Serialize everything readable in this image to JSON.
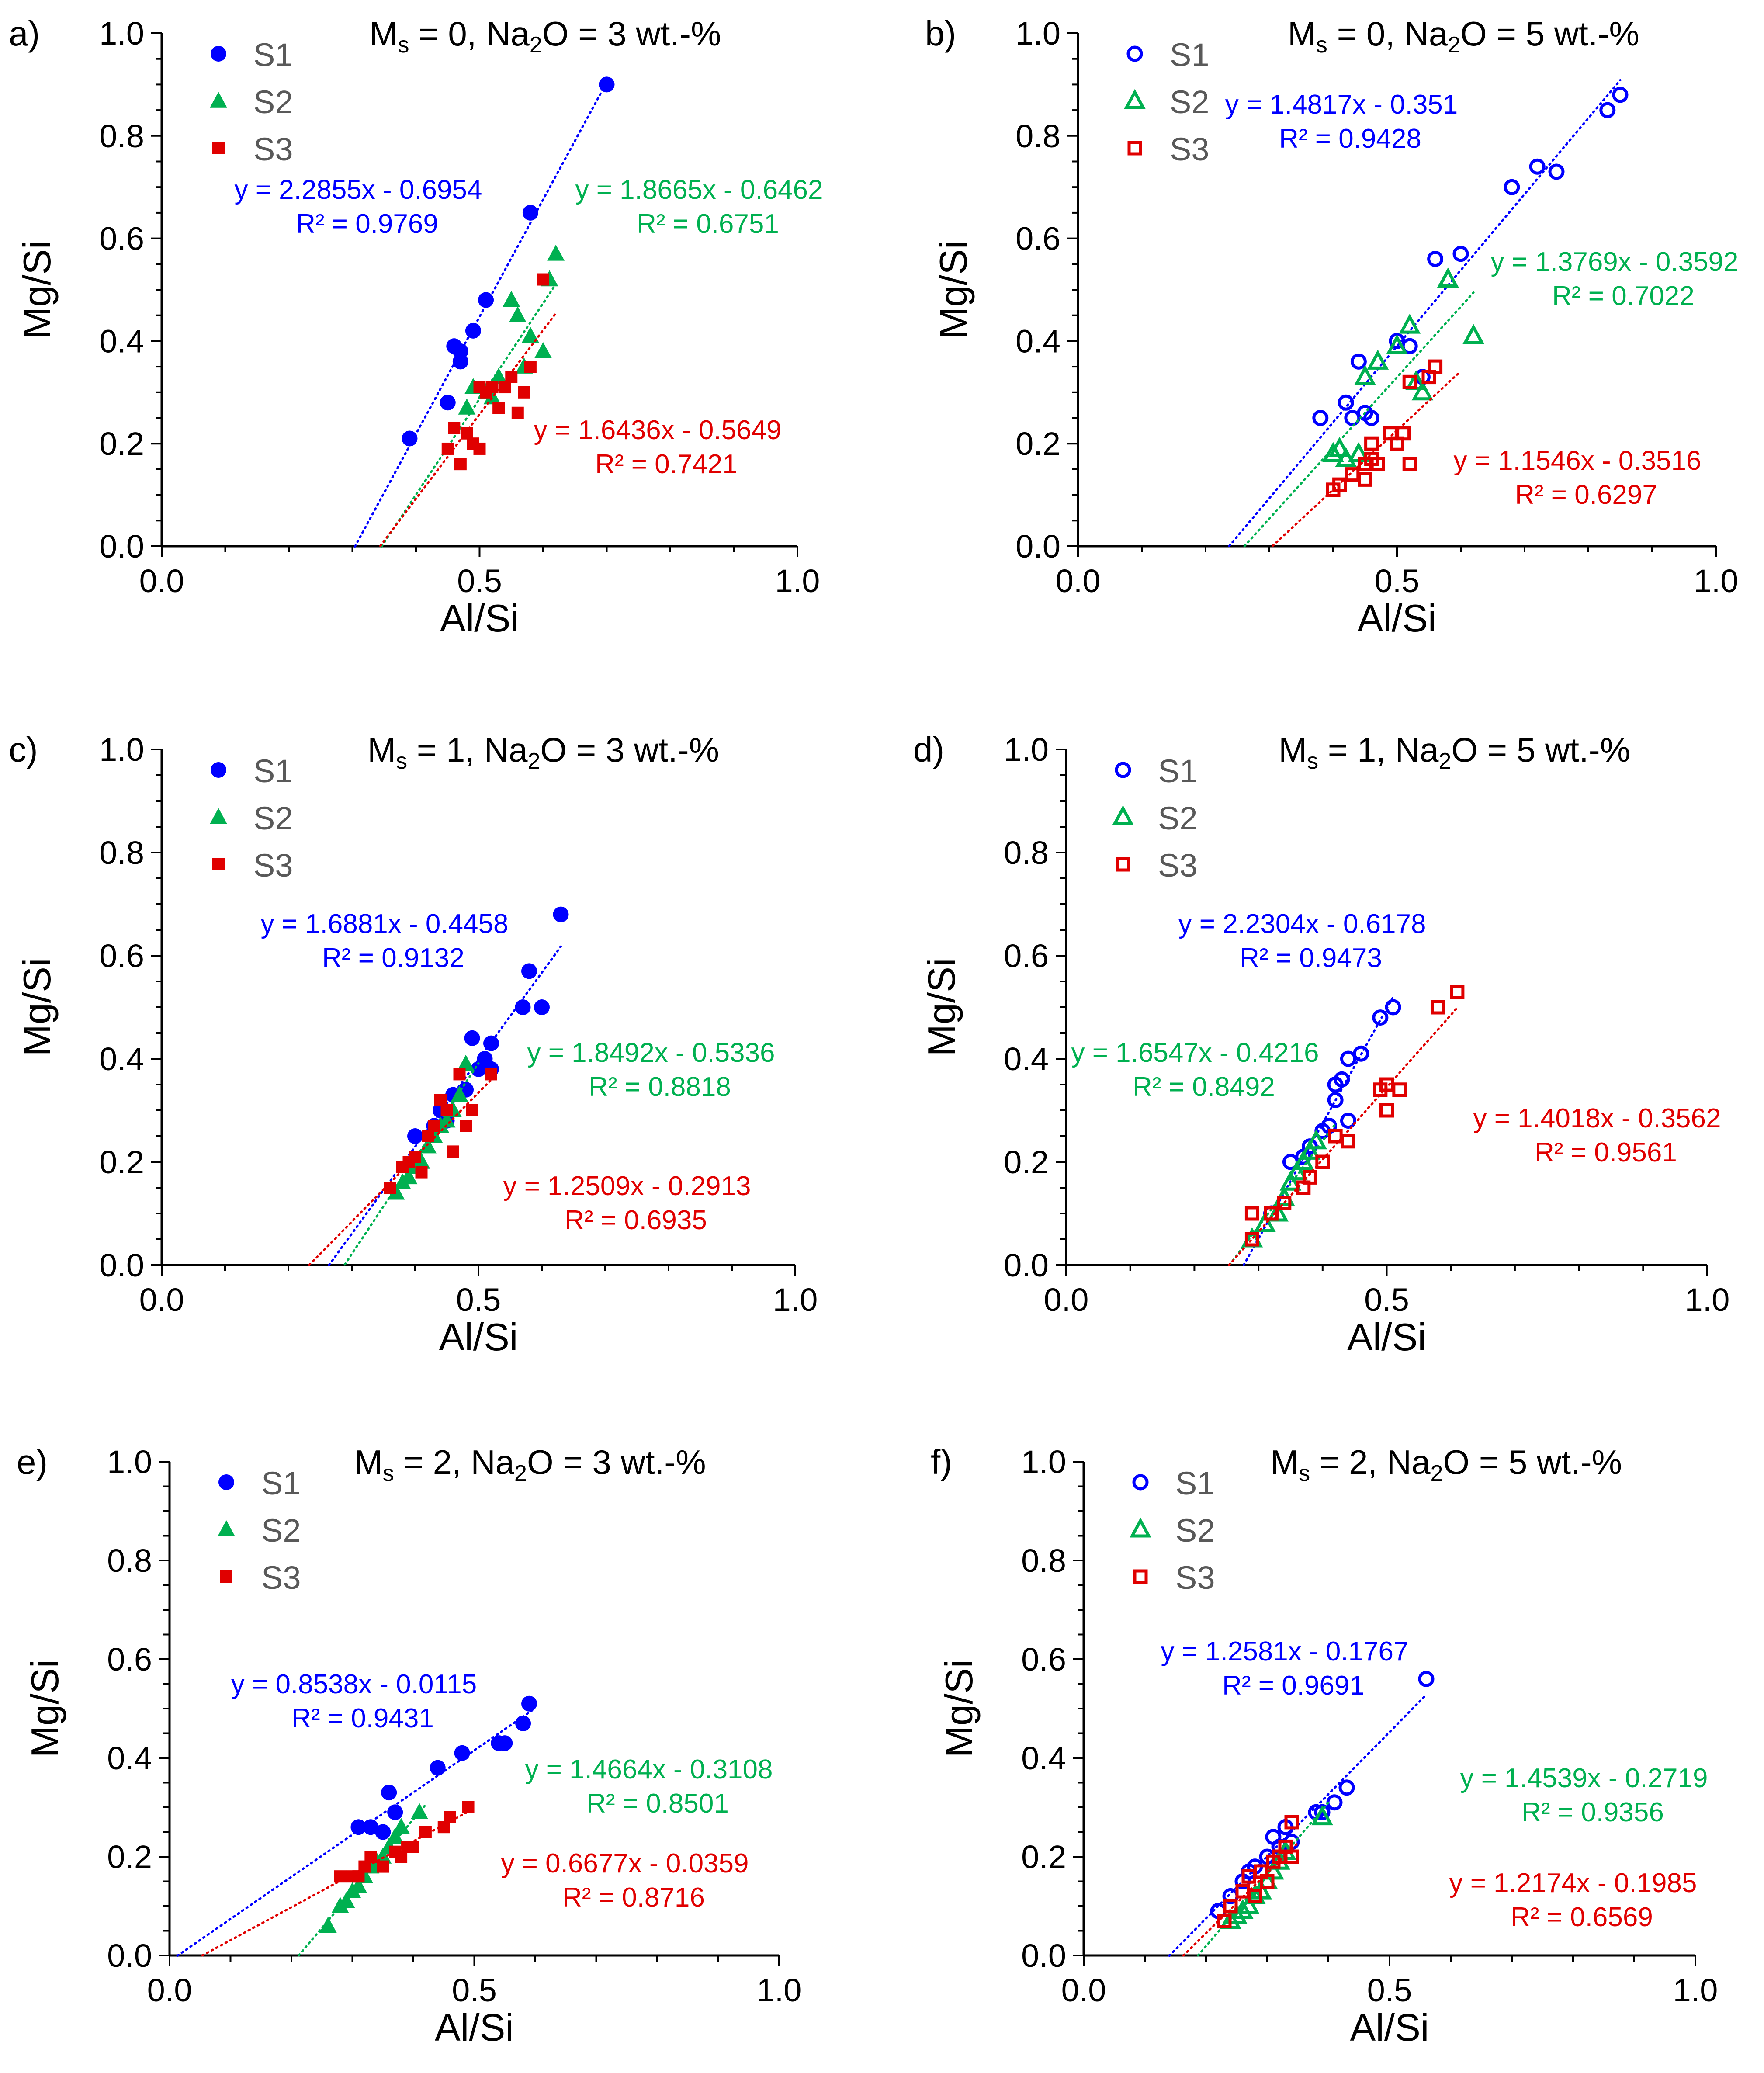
{
  "colors": {
    "S1": "#0000ff",
    "S2": "#00b050",
    "S3": "#e00000",
    "axis": "#000000",
    "text": "#000000",
    "legend_text": "#595959"
  },
  "axis_text": {
    "xlabel": "Al/Si",
    "ylabel": "Mg/Si"
  },
  "chart_data": [
    {
      "type": "scatter",
      "panel_label": "a)",
      "title_parts": [
        "M",
        "s",
        " = 0, Na",
        "2",
        "O = 3 wt.-%"
      ],
      "xlabel": "Al/Si",
      "ylabel": "Mg/Si",
      "xlim": [
        0,
        1
      ],
      "ylim": [
        0,
        1
      ],
      "x_ticks": [
        "0.0",
        "0.5",
        "1.0"
      ],
      "y_ticks": [
        "0.0",
        "0.2",
        "0.4",
        "0.6",
        "0.8",
        "1.0"
      ],
      "marker_fill": "solid",
      "series": [
        {
          "name": "S1",
          "marker": "circle",
          "x": [
            0.39,
            0.45,
            0.46,
            0.47,
            0.47,
            0.49,
            0.51,
            0.58,
            0.7
          ],
          "y": [
            0.21,
            0.28,
            0.39,
            0.38,
            0.36,
            0.42,
            0.48,
            0.65,
            0.9
          ],
          "fit": {
            "slope": 2.2855,
            "intercept": -0.6954,
            "x_range": [
              0.304,
              0.7
            ]
          },
          "fit_label": [
            "y = 2.2855x - 0.6954",
            "R² = 0.9769"
          ]
        },
        {
          "name": "S2",
          "marker": "triangle",
          "x": [
            0.48,
            0.49,
            0.51,
            0.52,
            0.53,
            0.55,
            0.56,
            0.57,
            0.58,
            0.6,
            0.61,
            0.62
          ],
          "y": [
            0.27,
            0.31,
            0.3,
            0.29,
            0.33,
            0.48,
            0.45,
            0.35,
            0.41,
            0.38,
            0.52,
            0.57
          ],
          "fit": {
            "slope": 1.8665,
            "intercept": -0.6462,
            "x_range": [
              0.346,
              0.62
            ]
          },
          "fit_label": [
            "y = 1.8665x - 0.6462",
            "R² = 0.6751"
          ]
        },
        {
          "name": "S3",
          "marker": "square",
          "x": [
            0.45,
            0.46,
            0.47,
            0.48,
            0.49,
            0.5,
            0.5,
            0.51,
            0.52,
            0.53,
            0.54,
            0.55,
            0.56,
            0.57,
            0.58,
            0.6
          ],
          "y": [
            0.19,
            0.23,
            0.16,
            0.22,
            0.2,
            0.19,
            0.31,
            0.3,
            0.31,
            0.27,
            0.31,
            0.33,
            0.26,
            0.3,
            0.35,
            0.52
          ],
          "fit": {
            "slope": 1.6436,
            "intercept": -0.5649,
            "x_range": [
              0.344,
              0.62
            ]
          },
          "fit_label": [
            "y = 1.6436x - 0.5649",
            "R² = 0.7421"
          ]
        }
      ]
    },
    {
      "type": "scatter",
      "panel_label": "b)",
      "title_parts": [
        "M",
        "s",
        " = 0, Na",
        "2",
        "O = 5 wt.-%"
      ],
      "xlabel": "Al/Si",
      "ylabel": "Mg/Si",
      "xlim": [
        0,
        1
      ],
      "ylim": [
        0,
        1
      ],
      "x_ticks": [
        "0.0",
        "0.5",
        "1.0"
      ],
      "y_ticks": [
        "0.0",
        "0.2",
        "0.4",
        "0.6",
        "0.8",
        "1.0"
      ],
      "marker_fill": "open",
      "series": [
        {
          "name": "S1",
          "marker": "circle",
          "x": [
            0.38,
            0.42,
            0.43,
            0.44,
            0.45,
            0.46,
            0.5,
            0.52,
            0.54,
            0.56,
            0.6,
            0.68,
            0.72,
            0.75,
            0.83,
            0.85
          ],
          "y": [
            0.25,
            0.28,
            0.25,
            0.36,
            0.26,
            0.25,
            0.4,
            0.39,
            0.33,
            0.56,
            0.57,
            0.7,
            0.74,
            0.73,
            0.85,
            0.88
          ],
          "fit": {
            "slope": 1.4817,
            "intercept": -0.351,
            "x_range": [
              0.237,
              0.85
            ]
          },
          "fit_label": [
            "y = 1.4817x - 0.351",
            "R² = 0.9428"
          ]
        },
        {
          "name": "S2",
          "marker": "triangle",
          "x": [
            0.4,
            0.41,
            0.42,
            0.44,
            0.45,
            0.47,
            0.5,
            0.52,
            0.53,
            0.54,
            0.58,
            0.62
          ],
          "y": [
            0.18,
            0.19,
            0.17,
            0.18,
            0.33,
            0.36,
            0.39,
            0.43,
            0.32,
            0.3,
            0.52,
            0.41
          ],
          "fit": {
            "slope": 1.3769,
            "intercept": -0.3592,
            "x_range": [
              0.261,
              0.62
            ]
          },
          "fit_label": [
            "y = 1.3769x - 0.3592",
            "R² = 0.7022"
          ]
        },
        {
          "name": "S3",
          "marker": "square",
          "x": [
            0.4,
            0.41,
            0.43,
            0.45,
            0.45,
            0.46,
            0.46,
            0.47,
            0.49,
            0.5,
            0.51,
            0.52,
            0.52,
            0.55,
            0.56
          ],
          "y": [
            0.11,
            0.12,
            0.14,
            0.13,
            0.16,
            0.2,
            0.17,
            0.16,
            0.22,
            0.2,
            0.22,
            0.32,
            0.16,
            0.33,
            0.35
          ],
          "fit": {
            "slope": 1.1546,
            "intercept": -0.3516,
            "x_range": [
              0.305,
              0.6
            ]
          },
          "fit_label": [
            "y = 1.1546x - 0.3516",
            "R² = 0.6297"
          ]
        }
      ]
    },
    {
      "type": "scatter",
      "panel_label": "c)",
      "title_parts": [
        "M",
        "s",
        " = 1, Na",
        "2",
        "O = 3 wt.-%"
      ],
      "xlabel": "Al/Si",
      "ylabel": "Mg/Si",
      "xlim": [
        0,
        1
      ],
      "ylim": [
        0,
        1
      ],
      "x_ticks": [
        "0.0",
        "0.5",
        "1.0"
      ],
      "y_ticks": [
        "0.0",
        "0.2",
        "0.4",
        "0.6",
        "0.8",
        "1.0"
      ],
      "marker_fill": "solid",
      "series": [
        {
          "name": "S1",
          "marker": "circle",
          "x": [
            0.4,
            0.43,
            0.44,
            0.45,
            0.46,
            0.48,
            0.49,
            0.5,
            0.51,
            0.52,
            0.52,
            0.57,
            0.58,
            0.6,
            0.63
          ],
          "y": [
            0.25,
            0.27,
            0.3,
            0.28,
            0.33,
            0.34,
            0.44,
            0.38,
            0.4,
            0.43,
            0.38,
            0.5,
            0.57,
            0.5,
            0.68
          ],
          "fit": {
            "slope": 1.6881,
            "intercept": -0.4458,
            "x_range": [
              0.264,
              0.63
            ]
          },
          "fit_label": [
            "y = 1.6881x - 0.4458",
            "R² = 0.9132"
          ]
        },
        {
          "name": "S2",
          "marker": "triangle",
          "x": [
            0.37,
            0.38,
            0.39,
            0.4,
            0.41,
            0.42,
            0.43,
            0.44,
            0.45,
            0.46,
            0.47,
            0.48
          ],
          "y": [
            0.14,
            0.16,
            0.17,
            0.19,
            0.2,
            0.23,
            0.25,
            0.27,
            0.28,
            0.3,
            0.33,
            0.39
          ],
          "fit": {
            "slope": 1.8492,
            "intercept": -0.5336,
            "x_range": [
              0.289,
              0.5
            ]
          },
          "fit_label": [
            "y = 1.8492x - 0.5336",
            "R² = 0.8818"
          ]
        },
        {
          "name": "S3",
          "marker": "square",
          "x": [
            0.36,
            0.38,
            0.39,
            0.4,
            0.41,
            0.42,
            0.43,
            0.44,
            0.45,
            0.46,
            0.47,
            0.48,
            0.49,
            0.52
          ],
          "y": [
            0.15,
            0.19,
            0.2,
            0.21,
            0.18,
            0.25,
            0.27,
            0.32,
            0.3,
            0.22,
            0.37,
            0.27,
            0.3,
            0.37
          ],
          "fit": {
            "slope": 1.2509,
            "intercept": -0.2913,
            "x_range": [
              0.233,
              0.52
            ]
          },
          "fit_label": [
            "y = 1.2509x - 0.2913",
            "R² = 0.6935"
          ]
        }
      ]
    },
    {
      "type": "scatter",
      "panel_label": "d)",
      "title_parts": [
        "M",
        "s",
        " = 1, Na",
        "2",
        "O = 5 wt.-%"
      ],
      "xlabel": "Al/Si",
      "ylabel": "Mg/Si",
      "xlim": [
        0,
        1
      ],
      "ylim": [
        0,
        1
      ],
      "x_ticks": [
        "0.0",
        "0.5",
        "1.0"
      ],
      "y_ticks": [
        "0.0",
        "0.2",
        "0.4",
        "0.6",
        "0.8",
        "1.0"
      ],
      "marker_fill": "open",
      "series": [
        {
          "name": "S1",
          "marker": "circle",
          "x": [
            0.32,
            0.35,
            0.37,
            0.38,
            0.4,
            0.41,
            0.42,
            0.42,
            0.43,
            0.44,
            0.44,
            0.46,
            0.49,
            0.51
          ],
          "y": [
            0.1,
            0.2,
            0.21,
            0.23,
            0.26,
            0.27,
            0.32,
            0.35,
            0.36,
            0.28,
            0.4,
            0.41,
            0.48,
            0.5
          ],
          "fit": {
            "slope": 2.2304,
            "intercept": -0.6178,
            "x_range": [
              0.277,
              0.51
            ]
          },
          "fit_label": [
            "y = 2.2304x - 0.6178",
            "R² = 0.9473"
          ]
        },
        {
          "name": "S2",
          "marker": "triangle",
          "x": [
            0.29,
            0.31,
            0.33,
            0.34,
            0.35,
            0.36,
            0.37,
            0.38,
            0.39
          ],
          "y": [
            0.05,
            0.08,
            0.1,
            0.13,
            0.16,
            0.18,
            0.2,
            0.22,
            0.24
          ],
          "fit": {
            "slope": 1.6547,
            "intercept": -0.4216,
            "x_range": [
              0.255,
              0.42
            ]
          },
          "fit_label": [
            "y = 1.6547x - 0.4216",
            "R² = 0.8492"
          ]
        },
        {
          "name": "S3",
          "marker": "square",
          "x": [
            0.29,
            0.29,
            0.32,
            0.34,
            0.37,
            0.38,
            0.4,
            0.42,
            0.44,
            0.49,
            0.5,
            0.5,
            0.52,
            0.58,
            0.61
          ],
          "y": [
            0.1,
            0.05,
            0.1,
            0.12,
            0.15,
            0.17,
            0.2,
            0.25,
            0.24,
            0.34,
            0.3,
            0.35,
            0.34,
            0.5,
            0.53
          ],
          "fit": {
            "slope": 1.4018,
            "intercept": -0.3562,
            "x_range": [
              0.254,
              0.61
            ]
          },
          "fit_label": [
            "y = 1.4018x - 0.3562",
            "R² = 0.9561"
          ]
        }
      ]
    },
    {
      "type": "scatter",
      "panel_label": "e)",
      "title_parts": [
        "M",
        "s",
        " = 2, Na",
        "2",
        "O = 3 wt.-%"
      ],
      "xlabel": "Al/Si",
      "ylabel": "Mg/Si",
      "xlim": [
        0,
        1
      ],
      "ylim": [
        0,
        1
      ],
      "x_ticks": [
        "0.0",
        "0.5",
        "1.0"
      ],
      "y_ticks": [
        "0.0",
        "0.2",
        "0.4",
        "0.6",
        "0.8",
        "1.0"
      ],
      "marker_fill": "solid",
      "series": [
        {
          "name": "S1",
          "marker": "circle",
          "x": [
            0.31,
            0.33,
            0.35,
            0.36,
            0.37,
            0.44,
            0.48,
            0.54,
            0.55,
            0.58,
            0.59
          ],
          "y": [
            0.26,
            0.26,
            0.25,
            0.33,
            0.29,
            0.38,
            0.41,
            0.43,
            0.43,
            0.47,
            0.51
          ],
          "fit": {
            "slope": 0.8538,
            "intercept": -0.0115,
            "x_range": [
              0.013,
              0.6
            ]
          },
          "fit_label": [
            "y = 0.8538x - 0.0115",
            "R² = 0.9431"
          ]
        },
        {
          "name": "S2",
          "marker": "triangle",
          "x": [
            0.26,
            0.28,
            0.29,
            0.3,
            0.31,
            0.32,
            0.33,
            0.34,
            0.35,
            0.36,
            0.37,
            0.38,
            0.41
          ],
          "y": [
            0.06,
            0.1,
            0.11,
            0.13,
            0.14,
            0.16,
            0.18,
            0.19,
            0.2,
            0.22,
            0.24,
            0.26,
            0.29
          ],
          "fit": {
            "slope": 1.4664,
            "intercept": -0.3108,
            "x_range": [
              0.212,
              0.42
            ]
          },
          "fit_label": [
            "y = 1.4664x - 0.3108",
            "R² = 0.8501"
          ]
        },
        {
          "name": "S3",
          "marker": "square",
          "x": [
            0.28,
            0.3,
            0.31,
            0.32,
            0.33,
            0.35,
            0.37,
            0.38,
            0.39,
            0.4,
            0.42,
            0.45,
            0.46,
            0.49
          ],
          "y": [
            0.16,
            0.16,
            0.16,
            0.18,
            0.2,
            0.18,
            0.21,
            0.2,
            0.22,
            0.22,
            0.25,
            0.26,
            0.28,
            0.3
          ],
          "fit": {
            "slope": 0.6677,
            "intercept": -0.0359,
            "x_range": [
              0.054,
              0.5
            ]
          },
          "fit_label": [
            "y = 0.6677x - 0.0359",
            "R² = 0.8716"
          ]
        }
      ]
    },
    {
      "type": "scatter",
      "panel_label": "f)",
      "title_parts": [
        "M",
        "s",
        " = 2, Na",
        "2",
        "O = 5 wt.-%"
      ],
      "xlabel": "Al/Si",
      "ylabel": "Mg/Si",
      "xlim": [
        0,
        1
      ],
      "ylim": [
        0,
        1
      ],
      "x_ticks": [
        "0.0",
        "0.5",
        "1.0"
      ],
      "y_ticks": [
        "0.0",
        "0.2",
        "0.4",
        "0.6",
        "0.8",
        "1.0"
      ],
      "marker_fill": "open",
      "series": [
        {
          "name": "S1",
          "marker": "circle",
          "x": [
            0.22,
            0.24,
            0.26,
            0.27,
            0.28,
            0.3,
            0.31,
            0.32,
            0.33,
            0.34,
            0.38,
            0.39,
            0.41,
            0.43,
            0.56
          ],
          "y": [
            0.09,
            0.12,
            0.15,
            0.17,
            0.18,
            0.2,
            0.24,
            0.22,
            0.26,
            0.23,
            0.29,
            0.29,
            0.31,
            0.34,
            0.56
          ],
          "fit": {
            "slope": 1.2581,
            "intercept": -0.1767,
            "x_range": [
              0.14,
              0.56
            ]
          },
          "fit_label": [
            "y = 1.2581x - 0.1767",
            "R² = 0.9691"
          ]
        },
        {
          "name": "S2",
          "marker": "triangle",
          "x": [
            0.24,
            0.25,
            0.26,
            0.27,
            0.28,
            0.29,
            0.3,
            0.31,
            0.32,
            0.33,
            0.39
          ],
          "y": [
            0.07,
            0.08,
            0.09,
            0.1,
            0.12,
            0.13,
            0.15,
            0.17,
            0.19,
            0.21,
            0.28
          ],
          "fit": {
            "slope": 1.4539,
            "intercept": -0.2719,
            "x_range": [
              0.187,
              0.4
            ]
          },
          "fit_label": [
            "y = 1.4539x - 0.2719",
            "R² = 0.9356"
          ]
        },
        {
          "name": "S3",
          "marker": "square",
          "x": [
            0.23,
            0.24,
            0.26,
            0.27,
            0.28,
            0.29,
            0.3,
            0.31,
            0.32,
            0.33,
            0.34,
            0.34
          ],
          "y": [
            0.07,
            0.1,
            0.13,
            0.16,
            0.12,
            0.17,
            0.15,
            0.19,
            0.2,
            0.22,
            0.27,
            0.2
          ],
          "fit": {
            "slope": 1.2174,
            "intercept": -0.1985,
            "x_range": [
              0.163,
              0.35
            ]
          },
          "fit_label": [
            "y = 1.2174x - 0.1985",
            "R² = 0.6569"
          ]
        }
      ]
    }
  ]
}
